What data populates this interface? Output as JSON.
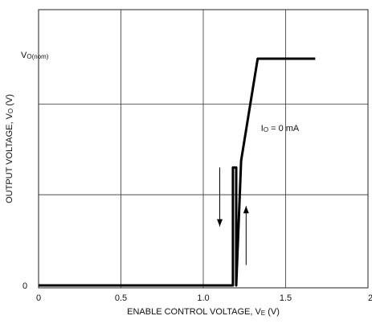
{
  "chart_data": {
    "type": "line",
    "xlabel": "ENABLE CONTROL VOLTAGE, V",
    "xlabel_sub": "E",
    "xlabel_unit": " (V)",
    "ylabel": "OUTPUT VOLTAGE, V",
    "ylabel_sub": "O",
    "ylabel_unit": " (V)",
    "x_ticks": [
      "0",
      "0.5",
      "1.0",
      "1.5",
      "2.0"
    ],
    "x_tick_values": [
      0,
      0.5,
      1.0,
      1.5,
      2.0
    ],
    "xlim": [
      0,
      2.0
    ],
    "ylim": [
      0,
      1.2
    ],
    "y_tick_labels": [
      {
        "value": 0,
        "text": "0"
      },
      {
        "value": 1.0,
        "main": "V",
        "sub": "O(nom)"
      }
    ],
    "y_grid": [
      0.4,
      0.8
    ],
    "grid": true,
    "annotation": {
      "main": "I",
      "sub": "O",
      "rest": " = 0 mA",
      "x": 1.35,
      "y": 0.68
    },
    "series": [
      {
        "x": [
          0,
          1.18,
          1.18,
          1.2,
          1.2,
          1.23,
          1.33,
          1.68
        ],
        "y": [
          0,
          0,
          0.52,
          0.52,
          0,
          0.55,
          1.0,
          1.0
        ]
      }
    ],
    "arrows": [
      {
        "direction": "down",
        "x": 1.1,
        "y_from": 0.52,
        "y_to": 0.26
      },
      {
        "direction": "up",
        "x": 1.26,
        "y_from": 0.09,
        "y_to": 0.35
      }
    ]
  }
}
